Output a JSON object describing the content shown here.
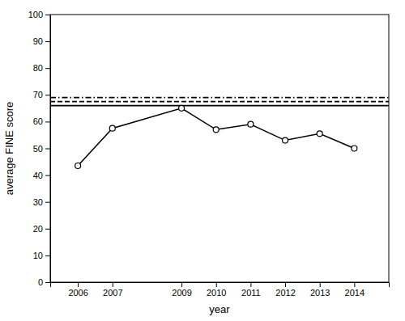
{
  "chart_data": {
    "type": "line",
    "x": [
      2006,
      2007,
      2009,
      2010,
      2011,
      2012,
      2013,
      2014
    ],
    "values": [
      43.5,
      57.5,
      65.0,
      57.0,
      59.0,
      53.0,
      55.5,
      50.0
    ],
    "color": "#000000",
    "marker": "circle",
    "xlabel": "year",
    "ylabel": "average FINE score",
    "xlim": [
      2005.2,
      2015.0
    ],
    "ylim": [
      0,
      100
    ],
    "xticks": [
      2006,
      2007,
      2009,
      2010,
      2011,
      2012,
      2013,
      2014
    ],
    "yticks": [
      0,
      10,
      20,
      30,
      40,
      50,
      60,
      70,
      80,
      90,
      100
    ],
    "hlines": [
      {
        "value": 66.0,
        "color": "#000000",
        "line_style": "solid"
      },
      {
        "value": 67.5,
        "color": "#000000",
        "line_style": "dashed"
      },
      {
        "value": 69.0,
        "color": "#000000",
        "line_style": "dashdot"
      }
    ],
    "grid": false
  }
}
